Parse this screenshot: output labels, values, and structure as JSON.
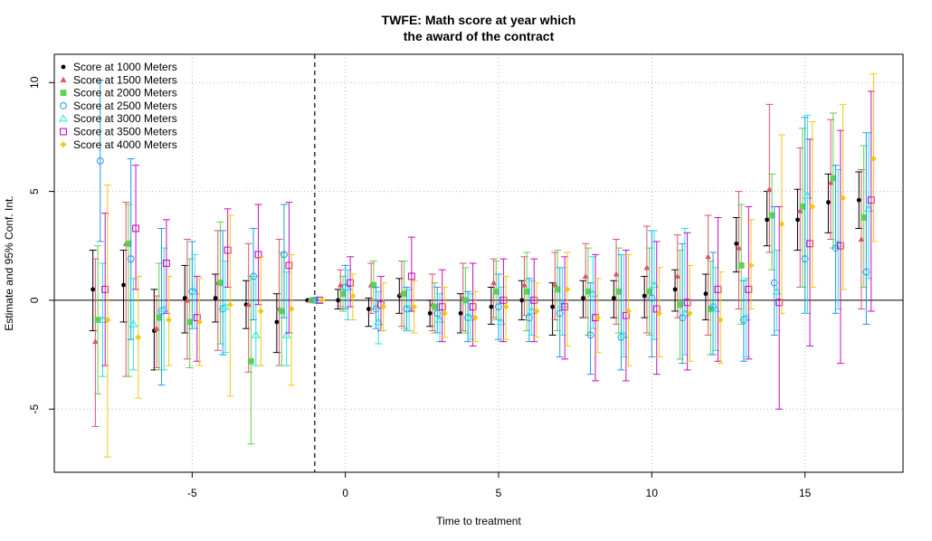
{
  "chart_data": {
    "type": "scatter",
    "title_lines": [
      "TWFE: Math score at year which",
      "the award of the contract"
    ],
    "xlabel": "Time to treatment",
    "ylabel": "Estimate and 95% Conf. Int.",
    "xlim": [
      -9.5,
      18.2
    ],
    "ylim": [
      -7.9,
      11.3
    ],
    "x_ticks": [
      -5,
      0,
      5,
      10,
      15
    ],
    "y_ticks": [
      -5,
      0,
      5,
      10
    ],
    "x_tick_labels": [
      "-5",
      "0",
      "5",
      "10",
      "15"
    ],
    "y_tick_labels": [
      "-5",
      "0",
      "5",
      "10"
    ],
    "grid": true,
    "grid_style": "dotted",
    "reference_line_y": 0,
    "reference_line_x": -1,
    "legend_position": "top-left",
    "x": [
      -8,
      -7,
      -6,
      -5,
      -4,
      -3,
      -2,
      -1,
      0,
      1,
      2,
      3,
      4,
      5,
      6,
      7,
      8,
      9,
      10,
      11,
      12,
      13,
      14,
      15,
      16,
      17
    ],
    "series": [
      {
        "name": "Score at 1000 Meters",
        "color": "#000000",
        "marker": "dot",
        "values": [
          0.5,
          0.7,
          -1.4,
          0.1,
          0.1,
          -0.2,
          -1.0,
          0.0,
          0.0,
          -0.4,
          0.2,
          -0.6,
          -0.6,
          -0.3,
          0.0,
          -0.3,
          0.1,
          0.1,
          0.2,
          0.5,
          0.3,
          2.6,
          3.7,
          3.7,
          4.5,
          4.6
        ],
        "lower": [
          -1.4,
          -1.0,
          -3.2,
          -1.5,
          -1.0,
          -1.3,
          -2.4,
          0.0,
          -0.4,
          -1.2,
          -0.6,
          -1.2,
          -1.5,
          -1.1,
          -0.9,
          -1.6,
          -0.8,
          -0.8,
          -0.8,
          -0.5,
          -0.9,
          1.3,
          2.5,
          2.3,
          3.1,
          3.3
        ],
        "upper": [
          2.3,
          2.3,
          0.5,
          1.6,
          1.2,
          0.9,
          0.3,
          0.0,
          0.5,
          0.1,
          1.0,
          0.0,
          0.3,
          0.6,
          0.9,
          0.8,
          0.9,
          0.9,
          1.1,
          1.4,
          1.2,
          3.8,
          5.0,
          5.1,
          5.8,
          5.9
        ]
      },
      {
        "name": "Score at 1500 Meters",
        "color": "#DF536B",
        "marker": "triangle",
        "values": [
          -1.9,
          2.6,
          -1.3,
          0.0,
          0.8,
          -0.2,
          -0.4,
          0.0,
          0.7,
          0.7,
          0.3,
          -0.2,
          0.1,
          0.8,
          0.7,
          0.7,
          1.1,
          1.2,
          1.5,
          1.1,
          2.0,
          2.4,
          5.1,
          4.1,
          5.4,
          2.8
        ],
        "lower": [
          -5.8,
          -3.5,
          -3.1,
          -2.7,
          -2.3,
          -3.3,
          -3.0,
          0.0,
          -0.3,
          -0.6,
          -1.2,
          -1.4,
          -1.4,
          -0.8,
          -0.7,
          -0.9,
          -0.8,
          -1.1,
          -1.5,
          -0.8,
          -1.6,
          -0.4,
          2.2,
          0.6,
          2.8,
          -0.4
        ],
        "upper": [
          1.9,
          4.5,
          0.2,
          2.8,
          3.2,
          2.6,
          2.8,
          0.0,
          1.4,
          1.7,
          1.8,
          1.2,
          1.7,
          1.9,
          2.0,
          2.2,
          2.6,
          2.8,
          3.4,
          3.0,
          3.9,
          5.0,
          9.0,
          7.0,
          8.3,
          6.0
        ]
      },
      {
        "name": "Score at 2000 Meters",
        "color": "#61D04F",
        "marker": "square",
        "values": [
          -0.9,
          2.6,
          -0.8,
          -1.0,
          0.8,
          -2.8,
          -0.5,
          0.0,
          0.3,
          0.7,
          0.3,
          -0.3,
          0.0,
          0.4,
          0.4,
          0.5,
          0.4,
          0.4,
          0.4,
          -0.2,
          -0.4,
          1.6,
          3.9,
          4.3,
          5.6,
          3.8
        ],
        "lower": [
          -4.3,
          -3.5,
          -3.2,
          -3.1,
          -2.0,
          -6.6,
          -3.0,
          0.0,
          -0.5,
          -0.4,
          -1.3,
          -1.5,
          -1.5,
          -0.9,
          -1.4,
          -1.4,
          -1.6,
          -1.5,
          -1.6,
          -2.7,
          -2.5,
          -1.1,
          1.4,
          0.6,
          2.4,
          0.6
        ],
        "upper": [
          2.5,
          4.4,
          1.7,
          1.9,
          3.6,
          1.1,
          2.2,
          0.0,
          1.1,
          1.8,
          1.8,
          0.8,
          1.5,
          1.8,
          2.2,
          2.3,
          2.4,
          2.4,
          2.4,
          2.3,
          1.8,
          4.4,
          5.8,
          7.9,
          8.6,
          7.1
        ]
      },
      {
        "name": "Score at 2500 Meters",
        "color": "#2297E6",
        "marker": "circle",
        "values": [
          6.4,
          1.9,
          -0.5,
          0.4,
          -0.4,
          1.1,
          2.1,
          0.0,
          0.6,
          -0.4,
          -0.4,
          -0.6,
          -0.8,
          -0.3,
          -0.8,
          -0.6,
          -1.6,
          -1.7,
          0.1,
          -0.8,
          -0.3,
          -0.9,
          0.8,
          1.9,
          2.4,
          1.3
        ],
        "lower": [
          2.7,
          -1.8,
          -3.9,
          -1.3,
          -2.5,
          -0.9,
          -0.8,
          0.0,
          -0.4,
          -1.3,
          -1.4,
          -1.5,
          -1.9,
          -1.8,
          -1.9,
          -2.6,
          -3.4,
          -3.2,
          -2.6,
          -2.9,
          -2.5,
          -2.8,
          -1.6,
          -0.6,
          -0.6,
          -1.1
        ],
        "upper": [
          10.1,
          6.5,
          3.3,
          2.7,
          3.2,
          3.3,
          4.4,
          0.0,
          1.6,
          0.6,
          0.6,
          0.6,
          0.4,
          1.2,
          1.0,
          1.5,
          0.8,
          2.1,
          3.2,
          2.6,
          2.2,
          0.9,
          4.3,
          8.4,
          6.2,
          7.7
        ]
      },
      {
        "name": "Score at 3000 Meters",
        "color": "#28E2E5",
        "marker": "triangle-open",
        "values": [
          -0.9,
          -1.1,
          -0.4,
          0.4,
          -0.3,
          -1.6,
          -1.6,
          0.0,
          0.6,
          -1.0,
          -0.4,
          -0.9,
          -0.8,
          -1.0,
          -0.5,
          -0.2,
          0.3,
          -1.6,
          0.7,
          -0.6,
          -0.4,
          -0.8,
          0.4,
          4.8,
          2.6,
          4.2
        ],
        "lower": [
          -3.5,
          -3.2,
          -3.2,
          -1.3,
          -2.4,
          -3.0,
          -3.0,
          0.0,
          -0.9,
          -2.0,
          -1.4,
          -1.9,
          -1.8,
          -1.9,
          -1.6,
          -1.6,
          -1.3,
          -2.6,
          -1.8,
          -2.5,
          -2.3,
          -2.6,
          -1.4,
          -0.6,
          -0.4,
          1.0
        ],
        "upper": [
          1.7,
          1.0,
          2.4,
          2.1,
          1.8,
          1.1,
          1.3,
          0.0,
          1.4,
          0.4,
          0.5,
          0.3,
          0.3,
          0.6,
          0.9,
          1.5,
          2.0,
          2.1,
          3.2,
          3.3,
          1.5,
          1.0,
          2.3,
          8.5,
          6.0,
          7.7
        ]
      },
      {
        "name": "Score at 3500 Meters",
        "color": "#CD0BBC",
        "marker": "square-open",
        "values": [
          0.5,
          3.3,
          1.7,
          -0.8,
          2.3,
          2.1,
          1.6,
          0.0,
          0.8,
          -0.2,
          1.1,
          -0.3,
          -0.3,
          0.0,
          0.0,
          -0.3,
          -0.8,
          -0.7,
          -0.4,
          -0.1,
          0.5,
          0.5,
          -0.1,
          2.6,
          2.5,
          4.6
        ],
        "lower": [
          -3.0,
          0.5,
          -0.6,
          -2.8,
          0.6,
          -0.2,
          -1.5,
          0.0,
          -0.3,
          -1.4,
          -0.5,
          -1.9,
          -2.1,
          -1.9,
          -1.9,
          -2.7,
          -3.7,
          -3.7,
          -3.4,
          -3.2,
          -2.8,
          -2.7,
          -5.0,
          -2.1,
          -2.9,
          -0.5
        ],
        "upper": [
          4.0,
          6.2,
          3.7,
          1.1,
          4.2,
          4.4,
          4.5,
          0.0,
          2.0,
          1.1,
          2.9,
          1.4,
          1.7,
          1.9,
          1.9,
          2.0,
          2.1,
          2.3,
          2.7,
          3.1,
          3.8,
          4.3,
          4.3,
          7.4,
          7.8,
          9.6
        ]
      },
      {
        "name": "Score at 4000 Meters",
        "color": "#F5C710",
        "marker": "diamond",
        "values": [
          -0.9,
          -1.7,
          -0.9,
          -1.0,
          -0.2,
          -0.5,
          -0.4,
          0.0,
          0.2,
          -0.3,
          -0.3,
          -0.6,
          -0.8,
          -0.3,
          -0.5,
          0.5,
          -0.8,
          -0.5,
          -0.6,
          -0.6,
          -0.9,
          1.6,
          3.5,
          4.3,
          4.7,
          6.5
        ],
        "lower": [
          -7.2,
          -4.5,
          -3.0,
          -3.0,
          -4.4,
          -3.0,
          -3.9,
          0.0,
          -0.9,
          -1.4,
          -1.5,
          -1.7,
          -1.9,
          -1.8,
          -1.7,
          -2.1,
          -2.4,
          -3.0,
          -2.6,
          -2.8,
          -2.9,
          -0.4,
          -0.6,
          0.6,
          0.5,
          2.7
        ],
        "upper": [
          5.3,
          1.1,
          1.1,
          1.0,
          3.9,
          2.0,
          2.1,
          0.0,
          1.2,
          0.8,
          0.9,
          0.6,
          0.4,
          1.1,
          0.8,
          2.2,
          1.0,
          2.1,
          1.5,
          1.6,
          1.3,
          3.7,
          7.6,
          8.2,
          9.0,
          10.4
        ]
      }
    ]
  }
}
